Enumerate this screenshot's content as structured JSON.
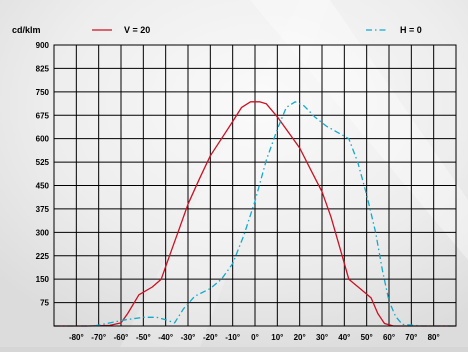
{
  "chart_data": {
    "type": "line",
    "ylabel": "cd/klm",
    "legend_position": "top",
    "grid": true,
    "xlim": [
      -90,
      90
    ],
    "ylim": [
      0,
      900
    ],
    "x_ticks": [
      -80,
      -70,
      -60,
      -50,
      -40,
      -30,
      -20,
      -10,
      0,
      10,
      20,
      30,
      40,
      50,
      60,
      70,
      80
    ],
    "x_tick_labels": [
      "-80°",
      "-70°",
      "-60°",
      "-50°",
      "-40°",
      "-30°",
      "-20°",
      "-10°",
      "0°",
      "10°",
      "20°",
      "30°",
      "40°",
      "50°",
      "60°",
      "70°",
      "80°"
    ],
    "y_ticks": [
      75,
      150,
      225,
      300,
      375,
      450,
      525,
      600,
      675,
      750,
      825,
      900
    ],
    "y_tick_labels": [
      "75",
      "150",
      "225",
      "300",
      "375",
      "450",
      "525",
      "600",
      "675",
      "750",
      "825",
      "900"
    ],
    "series": [
      {
        "name": "V = 20",
        "color": "#cc1122",
        "style": "solid",
        "points": [
          [
            -90,
            0
          ],
          [
            -75,
            0
          ],
          [
            -65,
            2
          ],
          [
            -60,
            10
          ],
          [
            -57,
            40
          ],
          [
            -52,
            100
          ],
          [
            -46,
            125
          ],
          [
            -42,
            150
          ],
          [
            -38,
            230
          ],
          [
            -34,
            310
          ],
          [
            -30,
            390
          ],
          [
            -25,
            470
          ],
          [
            -20,
            545
          ],
          [
            -15,
            600
          ],
          [
            -10,
            655
          ],
          [
            -6,
            700
          ],
          [
            -2,
            718
          ],
          [
            2,
            718
          ],
          [
            5,
            712
          ],
          [
            10,
            670
          ],
          [
            15,
            620
          ],
          [
            20,
            570
          ],
          [
            25,
            500
          ],
          [
            30,
            430
          ],
          [
            34,
            350
          ],
          [
            38,
            250
          ],
          [
            42,
            150
          ],
          [
            47,
            120
          ],
          [
            52,
            90
          ],
          [
            55,
            40
          ],
          [
            58,
            8
          ],
          [
            62,
            0
          ],
          [
            75,
            0
          ],
          [
            90,
            0
          ]
        ]
      },
      {
        "name": "H = 0",
        "color": "#11aacc",
        "style": "dashdot",
        "points": [
          [
            -90,
            0
          ],
          [
            -72,
            0
          ],
          [
            -65,
            10
          ],
          [
            -58,
            20
          ],
          [
            -50,
            28
          ],
          [
            -44,
            28
          ],
          [
            -40,
            20
          ],
          [
            -36,
            10
          ],
          [
            -32,
            55
          ],
          [
            -27,
            95
          ],
          [
            -20,
            120
          ],
          [
            -15,
            150
          ],
          [
            -10,
            200
          ],
          [
            -5,
            290
          ],
          [
            0,
            400
          ],
          [
            5,
            530
          ],
          [
            10,
            630
          ],
          [
            14,
            700
          ],
          [
            18,
            718
          ],
          [
            22,
            705
          ],
          [
            27,
            668
          ],
          [
            32,
            640
          ],
          [
            37,
            620
          ],
          [
            42,
            600
          ],
          [
            46,
            525
          ],
          [
            50,
            420
          ],
          [
            54,
            300
          ],
          [
            57,
            180
          ],
          [
            60,
            80
          ],
          [
            63,
            30
          ],
          [
            66,
            5
          ],
          [
            75,
            0
          ],
          [
            90,
            0
          ]
        ]
      }
    ]
  }
}
